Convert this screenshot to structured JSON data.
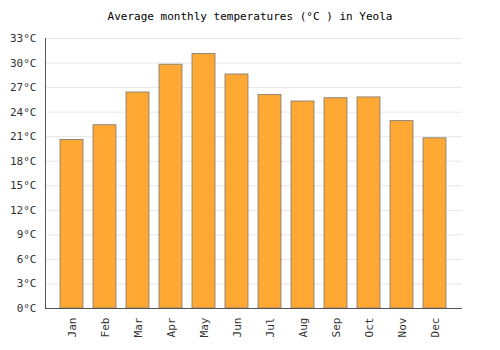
{
  "chart_data": {
    "type": "bar",
    "title": "Average monthly temperatures (°C ) in Yeola",
    "categories": [
      "Jan",
      "Feb",
      "Mar",
      "Apr",
      "May",
      "Jun",
      "Jul",
      "Aug",
      "Sep",
      "Oct",
      "Nov",
      "Dec"
    ],
    "values": [
      20.6,
      22.4,
      26.4,
      29.8,
      31.1,
      28.6,
      26.1,
      25.3,
      25.7,
      25.8,
      22.9,
      20.8
    ],
    "color": "#ffa834",
    "ylim": [
      0,
      33
    ],
    "yticks": [
      {
        "value": 0,
        "label": "0°C"
      },
      {
        "value": 3,
        "label": "3°C"
      },
      {
        "value": 6,
        "label": "6°C"
      },
      {
        "value": 9,
        "label": "9°C"
      },
      {
        "value": 12,
        "label": "12°C"
      },
      {
        "value": 15,
        "label": "15°C"
      },
      {
        "value": 18,
        "label": "18°C"
      },
      {
        "value": 21,
        "label": "21°C"
      },
      {
        "value": 24,
        "label": "24°C"
      },
      {
        "value": 27,
        "label": "27°C"
      },
      {
        "value": 30,
        "label": "30°C"
      },
      {
        "value": 33,
        "label": "33°C"
      }
    ],
    "grid": true
  }
}
